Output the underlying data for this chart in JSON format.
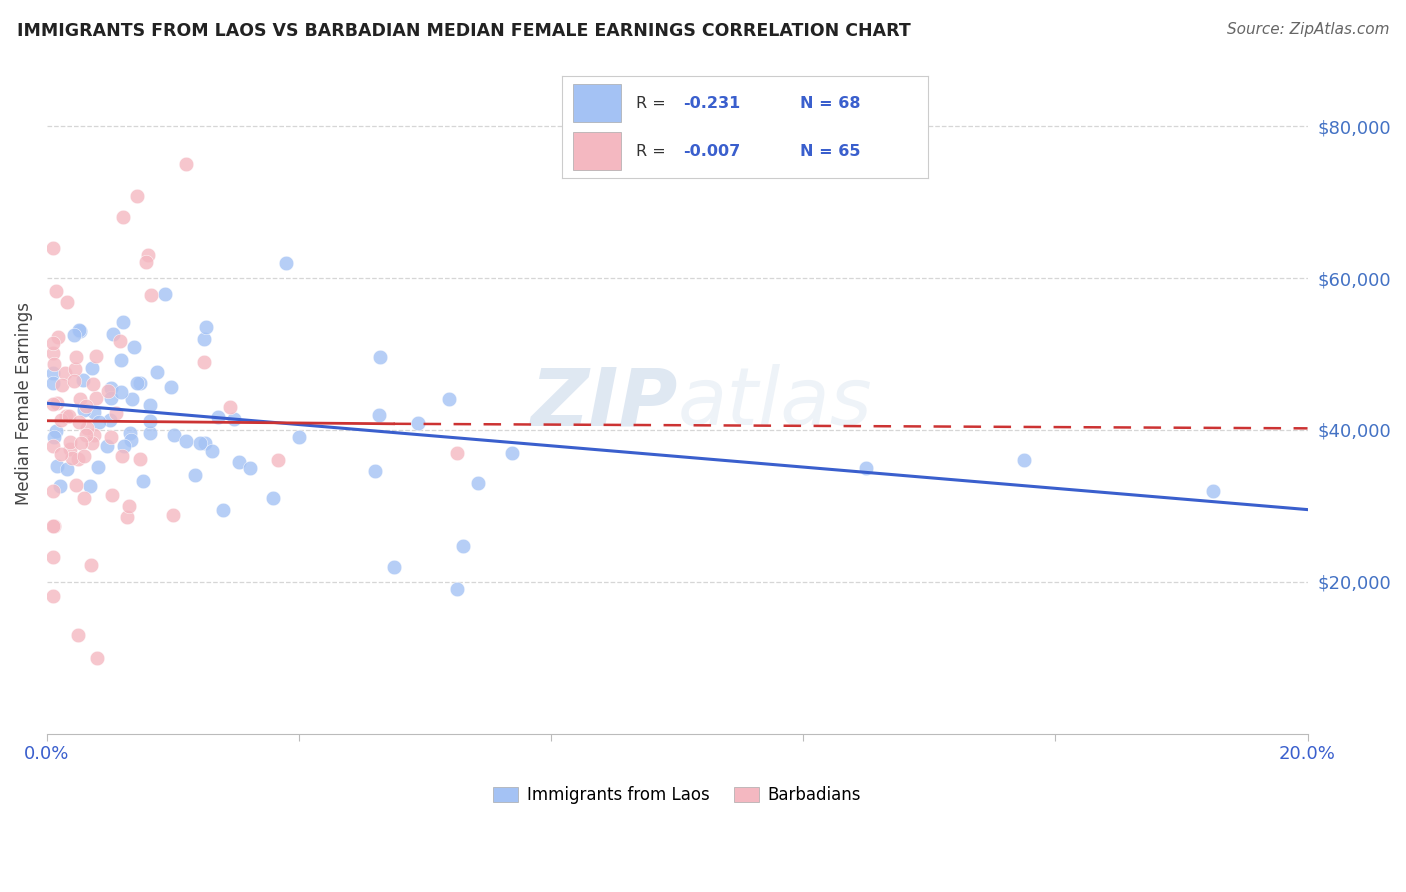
{
  "title": "IMMIGRANTS FROM LAOS VS BARBADIAN MEDIAN FEMALE EARNINGS CORRELATION CHART",
  "source": "Source: ZipAtlas.com",
  "ylabel": "Median Female Earnings",
  "ytick_color": "#4472c4",
  "color_blue": "#a4c2f4",
  "color_pink": "#f4b8c1",
  "line_blue": "#3a5fcd",
  "line_pink": "#cc3333",
  "watermark_color": "#c8d8f0",
  "background_color": "#ffffff",
  "grid_color": "#cccccc",
  "title_color": "#222222",
  "source_color": "#666666",
  "label_color": "#444444"
}
